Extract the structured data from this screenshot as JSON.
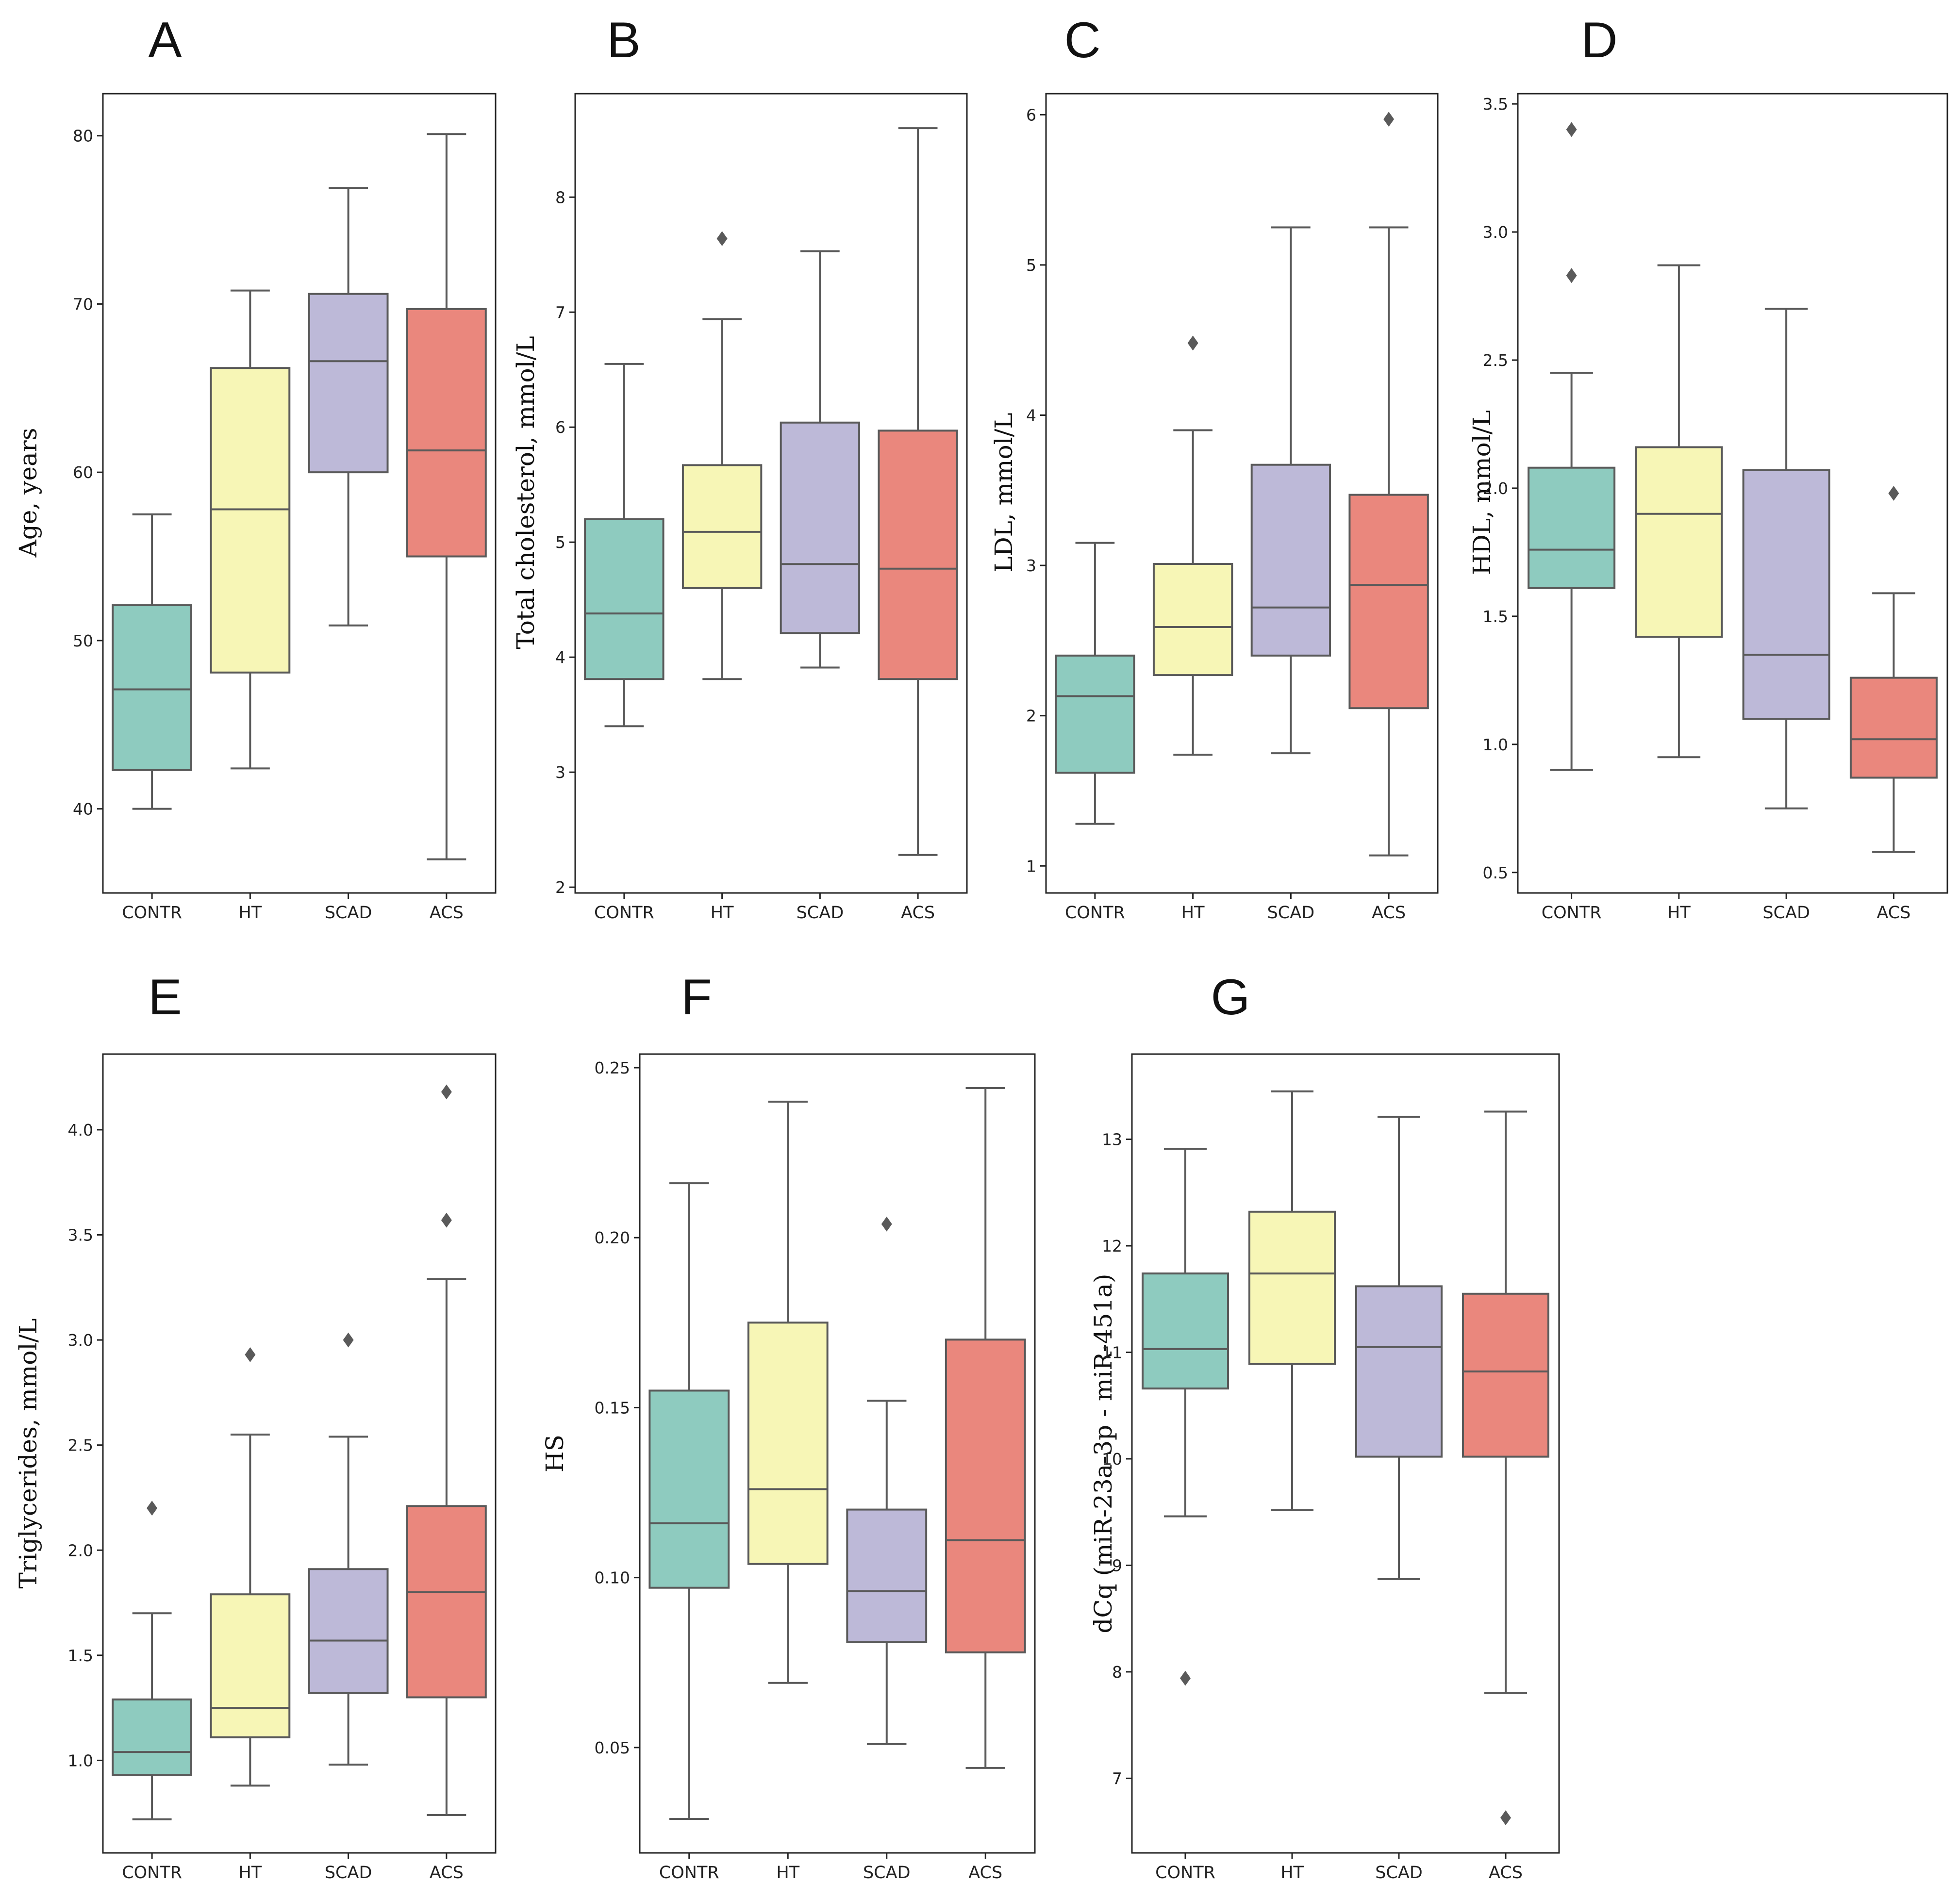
{
  "box_colors": {
    "CONTR": "#8ecbbf",
    "HT": "#f7f6b6",
    "SCAD": "#bdb9d8",
    "ACS": "#ea877d"
  },
  "line_color": "#5a5a5a",
  "chart_data": [
    {
      "type": "boxplot",
      "panel_label": "A",
      "ylabel": "Age, years",
      "ylim": [
        35,
        82.5
      ],
      "yticks": [
        40,
        50,
        60,
        70,
        80
      ],
      "categories": [
        "CONTR",
        "HT",
        "SCAD",
        "ACS"
      ],
      "boxes": [
        {
          "whisker_low": 40,
          "q1": 42.3,
          "median": 47.1,
          "q3": 52.1,
          "whisker_high": 57.5,
          "outliers": []
        },
        {
          "whisker_low": 42.4,
          "q1": 48.1,
          "median": 57.8,
          "q3": 66.2,
          "whisker_high": 70.8,
          "outliers": []
        },
        {
          "whisker_low": 50.9,
          "q1": 60,
          "median": 66.6,
          "q3": 70.6,
          "whisker_high": 76.9,
          "outliers": []
        },
        {
          "whisker_low": 37,
          "q1": 55,
          "median": 61.3,
          "q3": 69.7,
          "whisker_high": 80.1,
          "outliers": []
        }
      ]
    },
    {
      "type": "boxplot",
      "panel_label": "B",
      "ylabel": "Total cholesterol, mmol/L",
      "ylim": [
        1.95,
        8.9
      ],
      "yticks": [
        2,
        3,
        4,
        5,
        6,
        7,
        8
      ],
      "categories": [
        "CONTR",
        "HT",
        "SCAD",
        "ACS"
      ],
      "boxes": [
        {
          "whisker_low": 3.4,
          "q1": 3.81,
          "median": 4.38,
          "q3": 5.2,
          "whisker_high": 6.55,
          "outliers": []
        },
        {
          "whisker_low": 3.81,
          "q1": 4.6,
          "median": 5.09,
          "q3": 5.67,
          "whisker_high": 6.94,
          "outliers": [
            7.64
          ]
        },
        {
          "whisker_low": 3.91,
          "q1": 4.21,
          "median": 4.81,
          "q3": 6.04,
          "whisker_high": 7.53,
          "outliers": []
        },
        {
          "whisker_low": 2.28,
          "q1": 3.81,
          "median": 4.77,
          "q3": 5.97,
          "whisker_high": 8.6,
          "outliers": []
        }
      ]
    },
    {
      "type": "boxplot",
      "panel_label": "C",
      "ylabel": "LDL, mmol/L",
      "ylim": [
        0.82,
        6.14
      ],
      "yticks": [
        1,
        2,
        3,
        4,
        5,
        6
      ],
      "categories": [
        "CONTR",
        "HT",
        "SCAD",
        "ACS"
      ],
      "boxes": [
        {
          "whisker_low": 1.28,
          "q1": 1.62,
          "median": 2.13,
          "q3": 2.4,
          "whisker_high": 3.15,
          "outliers": []
        },
        {
          "whisker_low": 1.74,
          "q1": 2.27,
          "median": 2.59,
          "q3": 3.01,
          "whisker_high": 3.9,
          "outliers": [
            4.48
          ]
        },
        {
          "whisker_low": 1.75,
          "q1": 2.4,
          "median": 2.72,
          "q3": 3.67,
          "whisker_high": 5.25,
          "outliers": []
        },
        {
          "whisker_low": 1.07,
          "q1": 2.05,
          "median": 2.87,
          "q3": 3.47,
          "whisker_high": 5.25,
          "outliers": [
            5.97
          ]
        }
      ]
    },
    {
      "type": "boxplot",
      "panel_label": "D",
      "ylabel": "HDL, mmol/L",
      "ylim": [
        0.42,
        3.54
      ],
      "yticks": [
        0.5,
        1.0,
        1.5,
        2.0,
        2.5,
        3.0,
        3.5
      ],
      "categories": [
        "CONTR",
        "HT",
        "SCAD",
        "ACS"
      ],
      "boxes": [
        {
          "whisker_low": 0.9,
          "q1": 1.61,
          "median": 1.76,
          "q3": 2.08,
          "whisker_high": 2.45,
          "outliers": [
            2.83,
            3.4
          ]
        },
        {
          "whisker_low": 0.95,
          "q1": 1.42,
          "median": 1.9,
          "q3": 2.16,
          "whisker_high": 2.87,
          "outliers": []
        },
        {
          "whisker_low": 0.75,
          "q1": 1.1,
          "median": 1.35,
          "q3": 2.07,
          "whisker_high": 2.7,
          "outliers": []
        },
        {
          "whisker_low": 0.58,
          "q1": 0.87,
          "median": 1.02,
          "q3": 1.26,
          "whisker_high": 1.59,
          "outliers": [
            1.98
          ]
        }
      ]
    },
    {
      "type": "boxplot",
      "panel_label": "E",
      "ylabel": "Triglycerides, mmol/L",
      "ylim": [
        0.56,
        4.36
      ],
      "yticks": [
        1.0,
        1.5,
        2.0,
        2.5,
        3.0,
        3.5,
        4.0
      ],
      "categories": [
        "CONTR",
        "HT",
        "SCAD",
        "ACS"
      ],
      "boxes": [
        {
          "whisker_low": 0.72,
          "q1": 0.93,
          "median": 1.04,
          "q3": 1.29,
          "whisker_high": 1.7,
          "outliers": [
            2.2
          ]
        },
        {
          "whisker_low": 0.88,
          "q1": 1.11,
          "median": 1.25,
          "q3": 1.79,
          "whisker_high": 2.55,
          "outliers": [
            2.93
          ]
        },
        {
          "whisker_low": 0.98,
          "q1": 1.32,
          "median": 1.57,
          "q3": 1.91,
          "whisker_high": 2.54,
          "outliers": [
            3.0
          ]
        },
        {
          "whisker_low": 0.74,
          "q1": 1.3,
          "median": 1.8,
          "q3": 2.21,
          "whisker_high": 3.29,
          "outliers": [
            3.57,
            4.18
          ]
        }
      ]
    },
    {
      "type": "boxplot",
      "panel_label": "F",
      "ylabel": "HS",
      "ylim": [
        0.019,
        0.254
      ],
      "yticks": [
        0.05,
        0.1,
        0.15,
        0.2,
        0.25
      ],
      "categories": [
        "CONTR",
        "HT",
        "SCAD",
        "ACS"
      ],
      "boxes": [
        {
          "whisker_low": 0.029,
          "q1": 0.097,
          "median": 0.116,
          "q3": 0.155,
          "whisker_high": 0.216,
          "outliers": []
        },
        {
          "whisker_low": 0.069,
          "q1": 0.104,
          "median": 0.126,
          "q3": 0.175,
          "whisker_high": 0.24,
          "outliers": []
        },
        {
          "whisker_low": 0.051,
          "q1": 0.081,
          "median": 0.096,
          "q3": 0.12,
          "whisker_high": 0.152,
          "outliers": [
            0.204
          ]
        },
        {
          "whisker_low": 0.044,
          "q1": 0.078,
          "median": 0.111,
          "q3": 0.17,
          "whisker_high": 0.244,
          "outliers": []
        }
      ]
    },
    {
      "type": "boxplot",
      "panel_label": "G",
      "ylabel": "dCq (miR-23a-3p - miR-451a)",
      "ylim": [
        6.3,
        13.8
      ],
      "yticks": [
        7,
        8,
        9,
        10,
        11,
        12,
        13
      ],
      "categories": [
        "CONTR",
        "HT",
        "SCAD",
        "ACS"
      ],
      "boxes": [
        {
          "whisker_low": 9.46,
          "q1": 10.66,
          "median": 11.03,
          "q3": 11.74,
          "whisker_high": 12.91,
          "outliers": [
            7.94
          ]
        },
        {
          "whisker_low": 9.52,
          "q1": 10.89,
          "median": 11.74,
          "q3": 12.32,
          "whisker_high": 13.45,
          "outliers": []
        },
        {
          "whisker_low": 8.87,
          "q1": 10.02,
          "median": 11.05,
          "q3": 11.62,
          "whisker_high": 13.21,
          "outliers": []
        },
        {
          "whisker_low": 7.8,
          "q1": 10.02,
          "median": 10.82,
          "q3": 11.55,
          "whisker_high": 13.26,
          "outliers": [
            6.63
          ]
        }
      ]
    }
  ]
}
